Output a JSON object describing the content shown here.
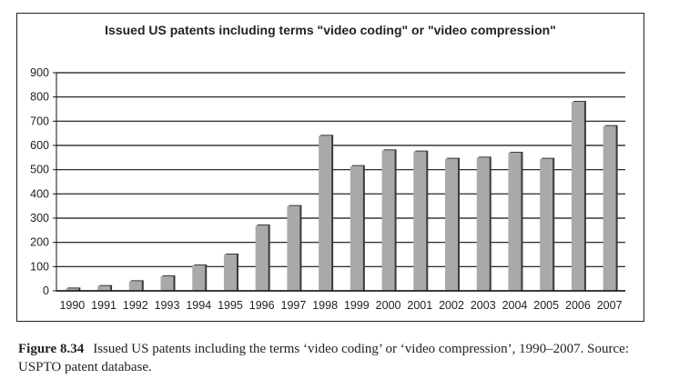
{
  "chart_data": {
    "type": "bar",
    "title": "Issued US patents including terms \"video coding\" or \"video compression\"",
    "xlabel": "",
    "ylabel": "",
    "ylim": [
      0,
      900
    ],
    "yticks": [
      0,
      100,
      200,
      300,
      400,
      500,
      600,
      700,
      800,
      900
    ],
    "grid": true,
    "categories": [
      "1990",
      "1991",
      "1992",
      "1993",
      "1994",
      "1995",
      "1996",
      "1997",
      "1998",
      "1999",
      "2000",
      "2001",
      "2002",
      "2003",
      "2004",
      "2005",
      "2006",
      "2007"
    ],
    "values": [
      10,
      20,
      40,
      60,
      105,
      150,
      270,
      350,
      640,
      515,
      580,
      575,
      545,
      550,
      570,
      545,
      780,
      680
    ],
    "colors": {
      "bar": "#a9a9a9",
      "bar_shadow": "#3a3a3a",
      "grid": "#111111"
    }
  },
  "caption": {
    "label": "Figure 8.34",
    "text": "Issued US patents including the terms ‘video coding’ or ‘video compression’, 1990–2007. Source: USPTO patent database."
  }
}
